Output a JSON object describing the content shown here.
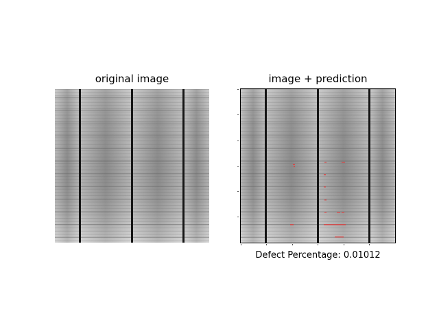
{
  "figure": {
    "left_title": "original image",
    "right_title": "image + prediction",
    "caption": "Defect Percentage: 0.01012"
  },
  "colors": {
    "cell_base": "#9a9a9a",
    "busbar": "#1a1a1a",
    "finger_line": "#7a7a7a",
    "defect_mark": "#e04040"
  },
  "icons": {
    "left_panel": "solar-cell-image",
    "right_panel": "solar-cell-image-with-defect-overlay"
  }
}
